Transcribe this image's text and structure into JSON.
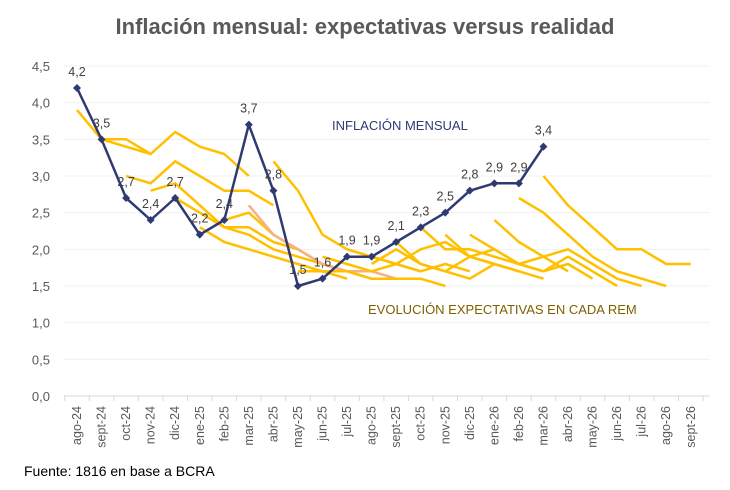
{
  "chart_data": {
    "type": "line",
    "title": "Inflación mensual: expectativas versus realidad",
    "xlabel": "",
    "ylabel": "",
    "ylim": [
      0,
      4.5
    ],
    "yticks": [
      "0,0",
      "0,5",
      "1,0",
      "1,5",
      "2,0",
      "2,5",
      "3,0",
      "3,5",
      "4,0",
      "4,5"
    ],
    "ytick_values": [
      0,
      0.5,
      1,
      1.5,
      2,
      2.5,
      3,
      3.5,
      4,
      4.5
    ],
    "grid": true,
    "categories": [
      "ago-24",
      "sept-24",
      "oct-24",
      "nov-24",
      "dic-24",
      "ene-25",
      "feb-25",
      "mar-25",
      "abr-25",
      "may-25",
      "jun-25",
      "jul-25",
      "ago-25",
      "sept-25",
      "oct-25",
      "nov-25",
      "dic-25",
      "ene-26",
      "feb-26",
      "mar-26",
      "abr-26",
      "may-26",
      "jun-26",
      "jul-26",
      "ago-26",
      "sept-26"
    ],
    "actual": {
      "name": "INFLACIÓN MENSUAL",
      "color": "#2f3a73",
      "values": [
        4.2,
        3.5,
        2.7,
        2.4,
        2.7,
        2.2,
        2.4,
        3.7,
        2.8,
        1.5,
        1.6,
        1.9,
        1.9,
        2.1,
        2.3,
        2.5,
        2.8,
        2.9,
        2.9,
        3.4
      ],
      "labels": [
        "4,2",
        "3,5",
        "2,7",
        "2,4",
        "2,7",
        "2,2",
        "2,4",
        "3,7",
        "2,8",
        "1,5",
        "1,6",
        "1,9",
        "1,9",
        "2,1",
        "2,3",
        "2,5",
        "2,8",
        "2,9",
        "2,9",
        "3,4"
      ]
    },
    "expectations": {
      "name": "EVOLUCIÓN EXPECTATIVAS EN CADA REM",
      "color": "#ffc000",
      "highlight_color": "#f4b183",
      "series": [
        {
          "start": 0,
          "values": [
            3.9,
            3.5,
            3.4,
            3.3,
            3.6,
            3.4,
            3.3,
            3.0
          ]
        },
        {
          "start": 1,
          "values": [
            3.5,
            3.5,
            3.3
          ]
        },
        {
          "start": 2,
          "values": [
            3.0,
            2.9,
            3.2,
            3.0,
            2.8,
            2.8,
            2.6
          ]
        },
        {
          "start": 3,
          "values": [
            2.8,
            2.9,
            2.6,
            2.3,
            2.3,
            2.1,
            2.0
          ]
        },
        {
          "start": 4,
          "values": [
            2.7,
            2.5,
            2.3,
            2.2,
            2.0,
            1.9,
            1.8
          ]
        },
        {
          "start": 5,
          "values": [
            2.3,
            2.1,
            2.0,
            1.9,
            1.8,
            1.7,
            1.6
          ]
        },
        {
          "start": 6,
          "values": [
            2.4,
            2.5,
            2.2,
            2.0,
            1.8,
            1.7,
            1.6
          ]
        },
        {
          "start": 7,
          "values": [
            2.6,
            2.2,
            2.0,
            1.8,
            1.7,
            1.7,
            1.6
          ],
          "highlight": true
        },
        {
          "start": 8,
          "values": [
            3.2,
            2.8,
            2.2,
            2.0,
            1.9,
            1.8,
            1.7
          ]
        },
        {
          "start": 9,
          "values": [
            1.7,
            1.7,
            1.7,
            1.6,
            1.6,
            1.6,
            1.5
          ]
        },
        {
          "start": 10,
          "values": [
            1.9,
            1.8,
            1.7,
            1.8,
            1.7,
            1.8,
            1.7
          ]
        },
        {
          "start": 11,
          "values": [
            2.0,
            1.9,
            1.8,
            2.0,
            2.1,
            1.9,
            1.8
          ]
        },
        {
          "start": 12,
          "values": [
            1.8,
            2.0,
            1.8,
            1.7,
            1.9,
            1.8,
            1.7
          ]
        },
        {
          "start": 13,
          "values": [
            2.1,
            1.8,
            1.7,
            1.6,
            1.8,
            1.7,
            1.6
          ]
        },
        {
          "start": 14,
          "values": [
            2.3,
            2.0,
            2.0,
            1.9,
            1.8,
            1.9,
            1.7
          ]
        },
        {
          "start": 15,
          "values": [
            2.2,
            1.9,
            2.0,
            1.8,
            1.7,
            1.8,
            1.6
          ]
        },
        {
          "start": 16,
          "values": [
            2.2,
            2.0,
            1.8,
            1.7,
            1.9,
            1.7,
            1.5
          ]
        },
        {
          "start": 17,
          "values": [
            2.4,
            2.1,
            1.9,
            2.0,
            1.8,
            1.6,
            1.5
          ]
        },
        {
          "start": 18,
          "values": [
            2.7,
            2.5,
            2.2,
            1.9,
            1.7,
            1.6,
            1.5
          ]
        },
        {
          "start": 19,
          "values": [
            3.0,
            2.6,
            2.3,
            2.0,
            2.0,
            1.8,
            1.8
          ]
        }
      ]
    },
    "annotations": [
      {
        "text": "INFLACIÓN MENSUAL",
        "role": "actual-series-label"
      },
      {
        "text": "EVOLUCIÓN EXPECTATIVAS EN CADA REM",
        "role": "expectations-label"
      }
    ]
  },
  "footer": {
    "source": "Fuente: 1816 en base a BCRA"
  }
}
